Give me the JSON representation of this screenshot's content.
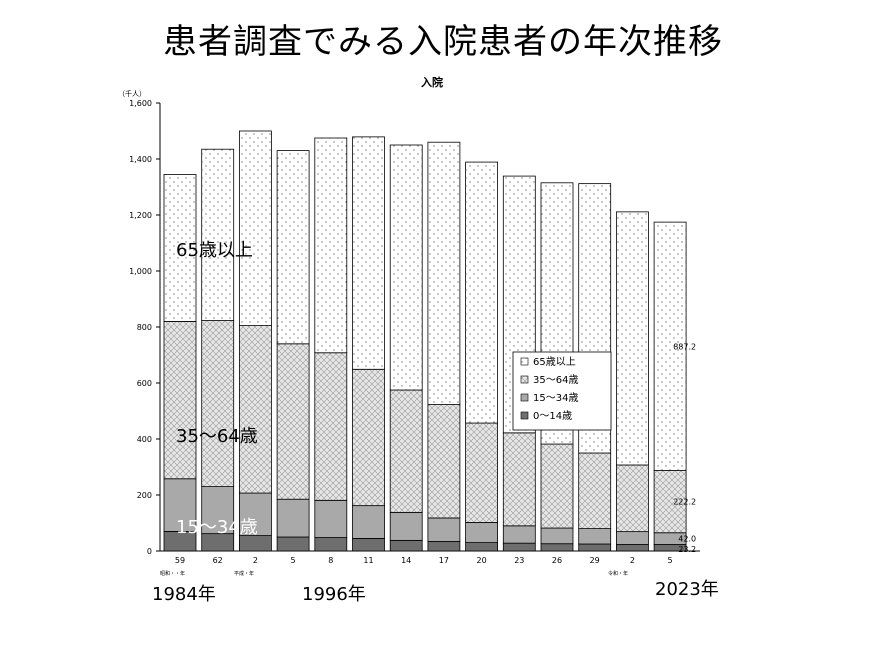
{
  "slide_title": "患者調査でみる入院患者の年次推移",
  "chart_data": {
    "type": "bar",
    "stacked": true,
    "title": "入院",
    "ylabel": "（千人）",
    "ylim": [
      0,
      1600
    ],
    "yticks": [
      0,
      200,
      400,
      600,
      800,
      1000,
      1200,
      1400,
      1600
    ],
    "ytick_labels": [
      "0",
      "200",
      "400",
      "600",
      "800",
      "1,000",
      "1,200",
      "1,400",
      "1,600"
    ],
    "categories": [
      "59",
      "62",
      "2",
      "5",
      "8",
      "11",
      "14",
      "17",
      "20",
      "23",
      "26",
      "29",
      "2",
      "5"
    ],
    "era_labels": [
      "昭和・・年",
      "平成・年",
      "令和・年"
    ],
    "series": [
      {
        "name": "0〜14歳",
        "color": "#6e6e6e",
        "pattern": "solid-dark",
        "values": [
          70,
          62,
          55,
          50,
          48,
          45,
          38,
          34,
          30,
          28,
          26,
          25,
          23.2,
          23.2
        ]
      },
      {
        "name": "15〜34歳",
        "color": "#b0b0b0",
        "pattern": "solid-light",
        "values": [
          188,
          168,
          152,
          135,
          133,
          117,
          100,
          84,
          72,
          62,
          56,
          55,
          46,
          42.0
        ]
      },
      {
        "name": "35〜64歳",
        "color": "#cfcfcf",
        "pattern": "crosshatch",
        "values": [
          562,
          593,
          598,
          555,
          527,
          487,
          437,
          405,
          355,
          332,
          300,
          270,
          238,
          222.2
        ]
      },
      {
        "name": "65歳以上",
        "color": "#ffffff",
        "pattern": "dots",
        "values": [
          525,
          612,
          695,
          690,
          767,
          830,
          875,
          937,
          932,
          917,
          933,
          962,
          904,
          887.2
        ]
      }
    ],
    "data_labels": [
      "887.2",
      "222.2",
      "42.0",
      "23.2"
    ],
    "legend": {
      "position": "inside-right",
      "entries": [
        "65歳以上",
        "35〜64歳",
        "15〜34歳",
        "0〜14歳"
      ]
    },
    "grid": false
  },
  "annotations": {
    "band_65": "65歳以上",
    "band_35": "35〜64歳",
    "band_15": "15〜34歳",
    "year_1984": "1984年",
    "year_1996": "1996年",
    "year_2023": "2023年"
  }
}
